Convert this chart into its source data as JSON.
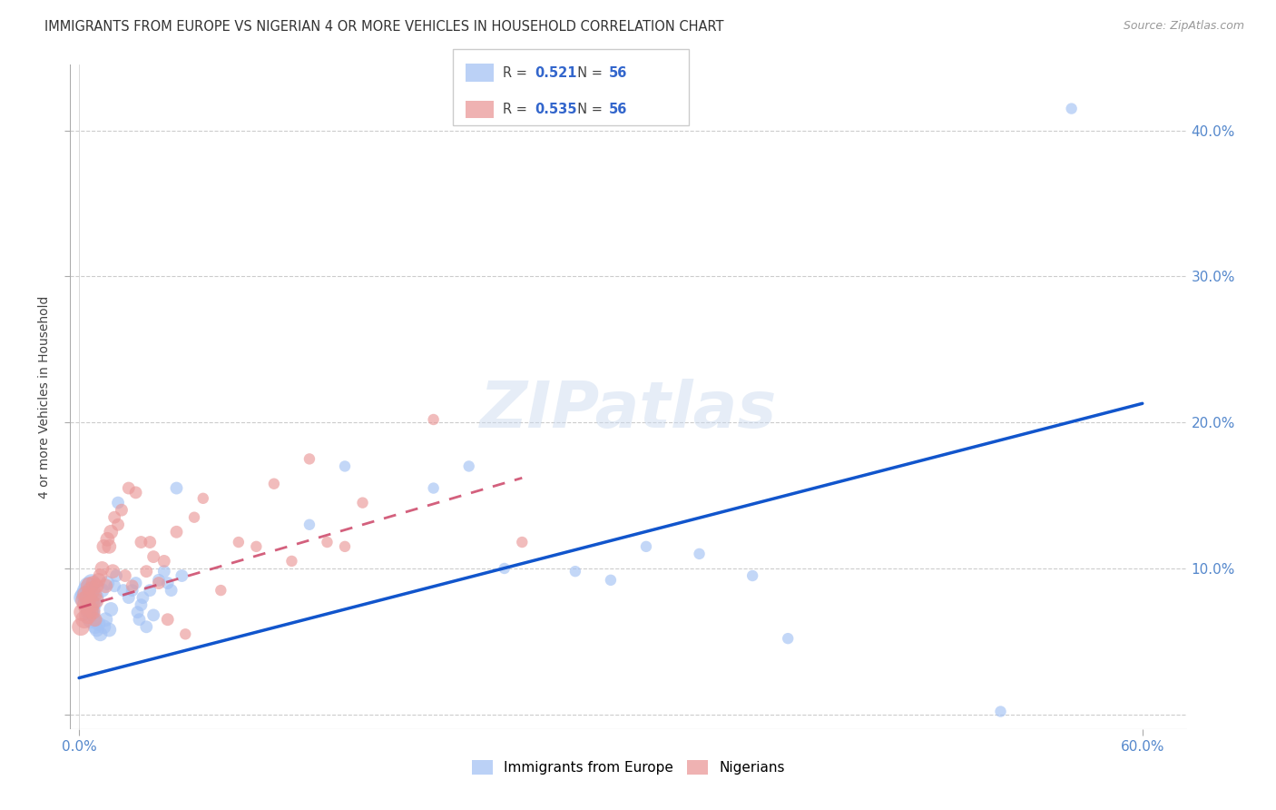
{
  "title": "IMMIGRANTS FROM EUROPE VS NIGERIAN 4 OR MORE VEHICLES IN HOUSEHOLD CORRELATION CHART",
  "source": "Source: ZipAtlas.com",
  "xlabel_legend": "Immigrants from Europe",
  "ylabel_legend": "Nigerians",
  "ylabel": "4 or more Vehicles in Household",
  "r_blue": 0.521,
  "n_blue": 56,
  "r_pink": 0.535,
  "n_pink": 56,
  "xlim": [
    -0.005,
    0.625
  ],
  "ylim": [
    -0.01,
    0.445
  ],
  "xtick_positions": [
    0.0,
    0.6
  ],
  "xtick_labels": [
    "0.0%",
    "60.0%"
  ],
  "ytick_positions": [
    0.0,
    0.1,
    0.2,
    0.3,
    0.4
  ],
  "ytick_labels_right": [
    "",
    "10.0%",
    "20.0%",
    "30.0%",
    "40.0%"
  ],
  "blue_color": "#a4c2f4",
  "pink_color": "#ea9999",
  "blue_line_color": "#1155cc",
  "pink_line_color": "#cc4466",
  "grid_color": "#cccccc",
  "background_color": "#ffffff",
  "watermark": "ZIPatlas",
  "blue_line_x0": 0.0,
  "blue_line_y0": 0.025,
  "blue_line_x1": 0.6,
  "blue_line_y1": 0.213,
  "pink_line_x0": 0.0,
  "pink_line_y0": 0.073,
  "pink_line_x1": 0.25,
  "pink_line_y1": 0.162,
  "blue_scatter_x": [
    0.002,
    0.003,
    0.004,
    0.005,
    0.005,
    0.006,
    0.006,
    0.007,
    0.007,
    0.008,
    0.008,
    0.009,
    0.009,
    0.01,
    0.01,
    0.011,
    0.012,
    0.013,
    0.014,
    0.015,
    0.016,
    0.017,
    0.018,
    0.02,
    0.021,
    0.022,
    0.025,
    0.028,
    0.03,
    0.032,
    0.033,
    0.034,
    0.035,
    0.036,
    0.038,
    0.04,
    0.042,
    0.045,
    0.048,
    0.05,
    0.052,
    0.055,
    0.058,
    0.13,
    0.15,
    0.2,
    0.22,
    0.24,
    0.28,
    0.3,
    0.32,
    0.35,
    0.38,
    0.4,
    0.52,
    0.56
  ],
  "blue_scatter_y": [
    0.08,
    0.082,
    0.085,
    0.075,
    0.088,
    0.07,
    0.078,
    0.065,
    0.09,
    0.072,
    0.068,
    0.076,
    0.06,
    0.08,
    0.058,
    0.062,
    0.055,
    0.085,
    0.06,
    0.065,
    0.09,
    0.058,
    0.072,
    0.088,
    0.095,
    0.145,
    0.085,
    0.08,
    0.085,
    0.09,
    0.07,
    0.065,
    0.075,
    0.08,
    0.06,
    0.085,
    0.068,
    0.092,
    0.098,
    0.09,
    0.085,
    0.155,
    0.095,
    0.13,
    0.17,
    0.155,
    0.17,
    0.1,
    0.098,
    0.092,
    0.115,
    0.11,
    0.095,
    0.052,
    0.002,
    0.415
  ],
  "pink_scatter_x": [
    0.001,
    0.002,
    0.003,
    0.003,
    0.004,
    0.004,
    0.005,
    0.005,
    0.006,
    0.006,
    0.007,
    0.007,
    0.008,
    0.008,
    0.009,
    0.009,
    0.01,
    0.01,
    0.011,
    0.012,
    0.013,
    0.014,
    0.015,
    0.016,
    0.017,
    0.018,
    0.019,
    0.02,
    0.022,
    0.024,
    0.026,
    0.028,
    0.03,
    0.032,
    0.035,
    0.038,
    0.04,
    0.042,
    0.045,
    0.048,
    0.05,
    0.055,
    0.06,
    0.065,
    0.07,
    0.08,
    0.09,
    0.1,
    0.11,
    0.12,
    0.13,
    0.14,
    0.15,
    0.16,
    0.2,
    0.25
  ],
  "pink_scatter_y": [
    0.06,
    0.07,
    0.078,
    0.065,
    0.082,
    0.075,
    0.08,
    0.068,
    0.088,
    0.072,
    0.085,
    0.076,
    0.09,
    0.07,
    0.082,
    0.065,
    0.088,
    0.078,
    0.092,
    0.095,
    0.1,
    0.115,
    0.088,
    0.12,
    0.115,
    0.125,
    0.098,
    0.135,
    0.13,
    0.14,
    0.095,
    0.155,
    0.088,
    0.152,
    0.118,
    0.098,
    0.118,
    0.108,
    0.09,
    0.105,
    0.065,
    0.125,
    0.055,
    0.135,
    0.148,
    0.085,
    0.118,
    0.115,
    0.158,
    0.105,
    0.175,
    0.118,
    0.115,
    0.145,
    0.202,
    0.118
  ]
}
